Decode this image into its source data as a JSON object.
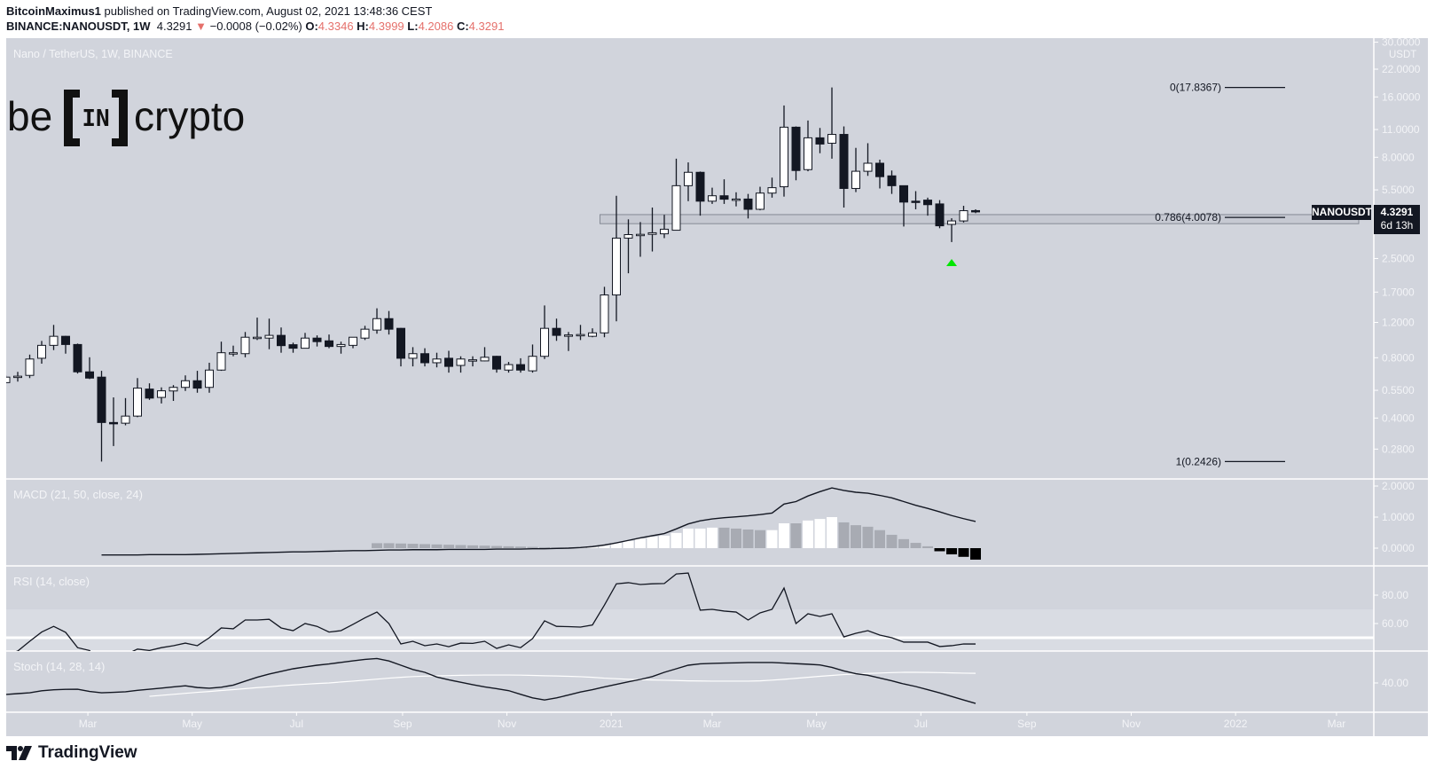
{
  "header": {
    "author": "BitcoinMaximus1",
    "published": "published on TradingView.com, August 02, 2021 13:48:36 CEST",
    "symbol": "BINANCE:NANOUSDT, 1W",
    "last": "4.3291",
    "change": "−0.0008 (−0.02%)",
    "o_label": "O:",
    "o": "4.3346",
    "h_label": "H:",
    "h": "4.3999",
    "l_label": "L:",
    "l": "4.2086",
    "c_label": "C:",
    "c": "4.3291",
    "direction_icon": "triangle-down-icon"
  },
  "main_pane": {
    "title": "Nano / TetherUS, 1W, BINANCE",
    "logo_text": "be[IN]crypto",
    "currency": "USDT",
    "symbol_tag": "NANOUSDT",
    "price_tag": "4.3291",
    "countdown": "6d 13h"
  },
  "indicators": {
    "macd_title": "MACD (21, 50, close, 24)",
    "rsi_title": "RSI (14, close)",
    "stoch_title": "Stoch (14, 28, 14)"
  },
  "footer": {
    "brand": "TradingView"
  },
  "colors": {
    "background": "#d1d4dc",
    "candle_up": "#ffffff",
    "candle_down": "#131722",
    "axis_text": "#f3f4f7",
    "marker": "#00e600",
    "hist": {
      "W": "#ffffff",
      "G": "#a8abb3",
      "B": "#000000"
    }
  },
  "chart_data": {
    "type": "candlestick",
    "interval": "1W",
    "y_scale": "log",
    "price_ticks": [
      "30.0000",
      "22.0000",
      "16.0000",
      "11.0000",
      "8.0000",
      "5.5000",
      "2.5000",
      "1.7000",
      "1.2000",
      "0.8000",
      "0.5500",
      "0.4000",
      "0.2800"
    ],
    "x_ticks": [
      {
        "label": "Mar",
        "date": "2020-03-01"
      },
      {
        "label": "May",
        "date": "2020-05-01"
      },
      {
        "label": "Jul",
        "date": "2020-07-01"
      },
      {
        "label": "Sep",
        "date": "2020-09-01"
      },
      {
        "label": "Nov",
        "date": "2020-11-01"
      },
      {
        "label": "2021",
        "date": "2021-01-01"
      },
      {
        "label": "Mar",
        "date": "2021-03-01"
      },
      {
        "label": "May",
        "date": "2021-05-01"
      },
      {
        "label": "Jul",
        "date": "2021-07-01"
      },
      {
        "label": "Sep",
        "date": "2021-09-01"
      },
      {
        "label": "Nov",
        "date": "2021-11-01"
      },
      {
        "label": "2022",
        "date": "2022-01-01"
      },
      {
        "label": "Mar",
        "date": "2022-03-01"
      }
    ],
    "candles_columns": [
      "date",
      "open",
      "high",
      "low",
      "close"
    ],
    "candles": [
      [
        "2020-01-13",
        0.601,
        0.653,
        0.596,
        0.64
      ],
      [
        "2020-01-20",
        0.646,
        0.68,
        0.608,
        0.647
      ],
      [
        "2020-01-27",
        0.653,
        0.829,
        0.633,
        0.788
      ],
      [
        "2020-02-03",
        0.795,
        0.97,
        0.747,
        0.922
      ],
      [
        "2020-02-10",
        0.922,
        1.166,
        0.873,
        1.023
      ],
      [
        "2020-02-17",
        1.023,
        1.028,
        0.838,
        0.931
      ],
      [
        "2020-02-24",
        0.931,
        0.941,
        0.667,
        0.68
      ],
      [
        "2020-03-02",
        0.68,
        0.804,
        0.626,
        0.633
      ],
      [
        "2020-03-09",
        0.64,
        0.688,
        0.2426,
        0.38
      ],
      [
        "2020-03-16",
        0.38,
        0.507,
        0.29,
        0.377
      ],
      [
        "2020-03-23",
        0.377,
        0.503,
        0.368,
        0.409
      ],
      [
        "2020-03-30",
        0.409,
        0.633,
        0.404,
        0.564
      ],
      [
        "2020-04-06",
        0.558,
        0.596,
        0.493,
        0.503
      ],
      [
        "2020-04-13",
        0.507,
        0.569,
        0.473,
        0.547
      ],
      [
        "2020-04-20",
        0.546,
        0.584,
        0.487,
        0.569
      ],
      [
        "2020-04-27",
        0.569,
        0.653,
        0.546,
        0.614
      ],
      [
        "2020-05-04",
        0.614,
        0.688,
        0.535,
        0.564
      ],
      [
        "2020-05-11",
        0.569,
        0.755,
        0.535,
        0.694
      ],
      [
        "2020-05-18",
        0.694,
        0.962,
        0.688,
        0.847
      ],
      [
        "2020-05-25",
        0.838,
        0.919,
        0.813,
        0.847
      ],
      [
        "2020-06-01",
        0.838,
        1.075,
        0.804,
        1.012
      ],
      [
        "2020-06-08",
        1.002,
        1.268,
        0.98,
        1.012
      ],
      [
        "2020-06-15",
        1.002,
        1.253,
        0.882,
        1.034
      ],
      [
        "2020-06-22",
        1.034,
        1.132,
        0.847,
        0.919
      ],
      [
        "2020-06-29",
        0.929,
        0.951,
        0.847,
        0.892
      ],
      [
        "2020-07-06",
        0.892,
        1.064,
        0.889,
        1.002
      ],
      [
        "2020-07-13",
        1.002,
        1.034,
        0.91,
        0.962
      ],
      [
        "2020-07-20",
        0.971,
        1.044,
        0.892,
        0.91
      ],
      [
        "2020-07-27",
        0.91,
        0.962,
        0.838,
        0.931
      ],
      [
        "2020-08-03",
        0.922,
        1.012,
        0.892,
        1.012
      ],
      [
        "2020-08-10",
        1.002,
        1.154,
        0.98,
        1.11
      ],
      [
        "2020-08-17",
        1.099,
        1.411,
        1.054,
        1.253
      ],
      [
        "2020-08-24",
        1.253,
        1.368,
        1.044,
        1.11
      ],
      [
        "2020-08-31",
        1.121,
        1.126,
        0.724,
        0.795
      ],
      [
        "2020-09-07",
        0.795,
        0.903,
        0.724,
        0.838
      ],
      [
        "2020-09-14",
        0.838,
        0.892,
        0.724,
        0.755
      ],
      [
        "2020-09-21",
        0.755,
        0.847,
        0.716,
        0.788
      ],
      [
        "2020-09-28",
        0.795,
        0.866,
        0.674,
        0.724
      ],
      [
        "2020-10-05",
        0.732,
        0.813,
        0.674,
        0.788
      ],
      [
        "2020-10-12",
        0.779,
        0.813,
        0.724,
        0.781
      ],
      [
        "2020-10-19",
        0.771,
        0.903,
        0.768,
        0.804
      ],
      [
        "2020-10-26",
        0.813,
        0.817,
        0.674,
        0.702
      ],
      [
        "2020-11-02",
        0.694,
        0.762,
        0.674,
        0.739
      ],
      [
        "2020-11-09",
        0.739,
        0.795,
        0.674,
        0.694
      ],
      [
        "2020-11-16",
        0.688,
        0.931,
        0.674,
        0.813
      ],
      [
        "2020-11-23",
        0.813,
        1.458,
        0.788,
        1.121
      ],
      [
        "2020-11-30",
        1.121,
        1.253,
        0.971,
        1.034
      ],
      [
        "2020-12-07",
        1.034,
        1.075,
        0.864,
        1.039
      ],
      [
        "2020-12-14",
        1.039,
        1.166,
        0.98,
        1.044
      ],
      [
        "2020-12-21",
        1.023,
        1.121,
        1.012,
        1.064
      ],
      [
        "2020-12-28",
        1.064,
        1.806,
        1.012,
        1.645
      ],
      [
        "2021-01-04",
        1.645,
        5.14,
        1.215,
        3.16
      ],
      [
        "2021-01-11",
        3.16,
        3.92,
        2.11,
        3.29
      ],
      [
        "2021-01-18",
        3.29,
        3.8,
        2.55,
        3.3
      ],
      [
        "2021-01-25",
        3.3,
        4.49,
        2.71,
        3.36
      ],
      [
        "2021-02-01",
        3.32,
        4.13,
        3.16,
        3.5
      ],
      [
        "2021-02-08",
        3.46,
        7.87,
        3.45,
        5.77
      ],
      [
        "2021-02-15",
        5.77,
        7.54,
        4.83,
        6.73
      ],
      [
        "2021-02-22",
        6.73,
        6.79,
        4.09,
        4.83
      ],
      [
        "2021-03-01",
        4.83,
        5.64,
        4.68,
        5.14
      ],
      [
        "2021-03-08",
        5.14,
        6.21,
        4.68,
        4.94
      ],
      [
        "2021-03-15",
        4.94,
        5.35,
        4.55,
        4.95
      ],
      [
        "2021-03-22",
        4.95,
        5.25,
        3.96,
        4.4
      ],
      [
        "2021-03-29",
        4.4,
        5.7,
        4.35,
        5.3
      ],
      [
        "2021-04-05",
        5.3,
        6.33,
        5.03,
        5.64
      ],
      [
        "2021-04-12",
        5.7,
        14.5,
        5.09,
        11.3
      ],
      [
        "2021-04-19",
        11.3,
        11.4,
        6.14,
        6.87
      ],
      [
        "2021-04-26",
        6.94,
        12.2,
        6.81,
        10.0
      ],
      [
        "2021-05-03",
        10.0,
        11.2,
        8.38,
        9.31
      ],
      [
        "2021-05-10",
        9.4,
        17.8367,
        7.87,
        10.4
      ],
      [
        "2021-05-17",
        10.4,
        11.4,
        4.49,
        5.59
      ],
      [
        "2021-05-24",
        5.59,
        8.91,
        5.36,
        6.81
      ],
      [
        "2021-05-31",
        6.81,
        9.4,
        6.46,
        7.47
      ],
      [
        "2021-06-07",
        7.47,
        7.78,
        5.59,
        6.4
      ],
      [
        "2021-06-14",
        6.46,
        6.87,
        5.25,
        5.77
      ],
      [
        "2021-06-21",
        5.77,
        5.79,
        3.61,
        4.78
      ],
      [
        "2021-06-28",
        4.83,
        5.42,
        4.4,
        4.8
      ],
      [
        "2021-07-05",
        4.89,
        5.03,
        4.09,
        4.64
      ],
      [
        "2021-07-12",
        4.68,
        4.89,
        3.54,
        3.64
      ],
      [
        "2021-07-19",
        3.7,
        3.97,
        3.02,
        3.85
      ],
      [
        "2021-07-26",
        3.85,
        4.58,
        3.78,
        4.33
      ],
      [
        "2021-08-02",
        4.3346,
        4.3999,
        4.2086,
        4.3291
      ]
    ],
    "support_zone": {
      "low": 3.73,
      "high": 4.14,
      "from": "2020-12-28",
      "to": "2022-03-14"
    },
    "fib_levels": [
      {
        "label": "0(17.8367)",
        "price": 17.8367
      },
      {
        "label": "0.786(4.0078)",
        "price": 4.0078
      },
      {
        "label": "1(0.2426)",
        "price": 0.2426
      }
    ],
    "marker": {
      "type": "triangle-up",
      "date": "2021-07-19"
    },
    "macd": {
      "ticks": [
        "2.0000",
        "1.0000",
        "0.0000"
      ],
      "tick_values": [
        2,
        1,
        0
      ],
      "line": [
        null,
        null,
        null,
        null,
        null,
        null,
        null,
        null,
        -0.22,
        -0.22,
        -0.22,
        -0.22,
        -0.21,
        -0.21,
        -0.21,
        -0.21,
        -0.2,
        -0.19,
        -0.18,
        -0.17,
        -0.16,
        -0.15,
        -0.14,
        -0.13,
        -0.12,
        -0.12,
        -0.11,
        -0.1,
        -0.09,
        -0.08,
        -0.08,
        -0.07,
        -0.06,
        -0.06,
        -0.05,
        -0.05,
        -0.05,
        -0.04,
        -0.04,
        -0.04,
        -0.04,
        -0.03,
        -0.03,
        -0.03,
        -0.02,
        -0.02,
        -0.01,
        0,
        0.02,
        0.05,
        0.1,
        0.17,
        0.25,
        0.33,
        0.4,
        0.47,
        0.62,
        0.78,
        0.88,
        0.94,
        0.98,
        1.01,
        1.04,
        1.08,
        1.13,
        1.42,
        1.5,
        1.68,
        1.82,
        1.94,
        1.86,
        1.8,
        1.77,
        1.7,
        1.62,
        1.5,
        1.38,
        1.28,
        1.17,
        1.05,
        0.95,
        0.86
      ],
      "hist": [
        null,
        null,
        null,
        null,
        null,
        null,
        null,
        null,
        null,
        null,
        null,
        null,
        null,
        null,
        null,
        null,
        null,
        null,
        null,
        null,
        null,
        null,
        null,
        null,
        null,
        null,
        null,
        null,
        null,
        null,
        null,
        0.16,
        0.16,
        0.15,
        0.14,
        0.13,
        0.12,
        0.11,
        0.1,
        0.09,
        0.08,
        0.07,
        0.06,
        0.05,
        0.04,
        0.03,
        0.02,
        0.02,
        0.03,
        0.06,
        0.11,
        0.17,
        0.23,
        0.31,
        0.37,
        0.4,
        0.49,
        0.63,
        0.63,
        0.66,
        0.66,
        0.63,
        0.6,
        0.58,
        0.58,
        0.8,
        0.8,
        0.89,
        0.94,
        1.0,
        0.83,
        0.74,
        0.69,
        0.58,
        0.43,
        0.29,
        0.17,
        0.06,
        -0.1,
        -0.2,
        -0.28,
        -0.37
      ],
      "hist_color": [
        "",
        "",
        "",
        "",
        "",
        "",
        "",
        "",
        "",
        "",
        "",
        "",
        "",
        "",
        "",
        "",
        "",
        "",
        "",
        "",
        "",
        "",
        "",
        "",
        "",
        "",
        "",
        "",
        "",
        "",
        "",
        "G",
        "G",
        "G",
        "G",
        "G",
        "G",
        "G",
        "G",
        "G",
        "G",
        "G",
        "G",
        "G",
        "G",
        "G",
        "G",
        "G",
        "W",
        "W",
        "W",
        "W",
        "W",
        "W",
        "W",
        "W",
        "W",
        "W",
        "W",
        "W",
        "G",
        "G",
        "G",
        "G",
        "W",
        "W",
        "G",
        "W",
        "W",
        "W",
        "G",
        "G",
        "G",
        "G",
        "G",
        "G",
        "G",
        "G",
        "B",
        "B",
        "B",
        "B"
      ]
    },
    "rsi": {
      "ticks": [
        "80.00",
        "60.00"
      ],
      "tick_values": [
        80,
        60
      ],
      "band": [
        30,
        70
      ],
      "midline": 50,
      "values": [
        38,
        40.6,
        47.5,
        54,
        58,
        53.8,
        43,
        41,
        30,
        33,
        38,
        42,
        41,
        43,
        44.4,
        46.2,
        44.4,
        50,
        56.9,
        56.3,
        62.5,
        62.5,
        63,
        56.9,
        55,
        60,
        58,
        54,
        55,
        59.4,
        64,
        68.1,
        60,
        45.6,
        47.5,
        44.4,
        45.6,
        43.7,
        46.2,
        46,
        47.5,
        42.5,
        45,
        43,
        49.4,
        61.9,
        58,
        57.8,
        57.5,
        59,
        73,
        88,
        88.8,
        87.5,
        88,
        88.2,
        94.9,
        95.6,
        69.4,
        70,
        68.8,
        68.1,
        62.5,
        67.5,
        70,
        85,
        60,
        66.9,
        65,
        66.9,
        50.6,
        53.1,
        55,
        51.9,
        50,
        46.9,
        46.9,
        46.9,
        43.8,
        44.4,
        45.6,
        45.6
      ]
    },
    "stoch": {
      "ticks": [
        "40.00"
      ],
      "tick_values": [
        40
      ],
      "k": [
        31.9,
        32.5,
        33.1,
        34.5,
        35.2,
        35.5,
        35.6,
        34,
        33.1,
        33.4,
        33.8,
        34.8,
        35.6,
        36.4,
        37.2,
        38,
        36.8,
        36.3,
        37,
        38.5,
        41.3,
        44,
        46.3,
        48.2,
        50,
        51.3,
        52.5,
        53.4,
        54.5,
        55.6,
        56.6,
        57.2,
        55.5,
        52.5,
        49.5,
        47.5,
        44.2,
        42.2,
        40.5,
        38.8,
        37.2,
        36,
        34.6,
        32,
        29.5,
        28,
        29.5,
        31.5,
        33.6,
        35.3,
        37.2,
        39,
        40.8,
        42.5,
        44.5,
        47.5,
        50,
        52.5,
        53.5,
        53.8,
        54,
        54.2,
        54.4,
        54.4,
        54.4,
        54,
        53.6,
        53.2,
        52.7,
        51,
        48.5,
        46.5,
        45.4,
        43.5,
        41.5,
        39.3,
        37.5,
        35.3,
        33,
        30.5,
        28,
        25.6
      ],
      "d": [
        null,
        null,
        null,
        null,
        null,
        null,
        null,
        null,
        null,
        null,
        null,
        null,
        30.6,
        31.3,
        32,
        32.7,
        33.4,
        34,
        34.7,
        35.3,
        36,
        36.7,
        37.3,
        38,
        38.6,
        39.1,
        39.6,
        40,
        40.7,
        41.3,
        42,
        42.7,
        43.4,
        44,
        44.5,
        44.8,
        45,
        45.2,
        45.4,
        45.5,
        45.6,
        45.6,
        45.6,
        45.5,
        45.3,
        45.1,
        44.9,
        44.7,
        44.4,
        44,
        43.4,
        43,
        42.6,
        42.3,
        42.1,
        41.9,
        41.7,
        41.5,
        41.4,
        41.3,
        41.3,
        41.3,
        41.3,
        41.5,
        42,
        42.6,
        43.3,
        44,
        44.7,
        45.3,
        45.9,
        46.3,
        46.7,
        47,
        47.3,
        47.5,
        47.5,
        47.4,
        47.3,
        47.1,
        46.9,
        46.8
      ]
    }
  }
}
